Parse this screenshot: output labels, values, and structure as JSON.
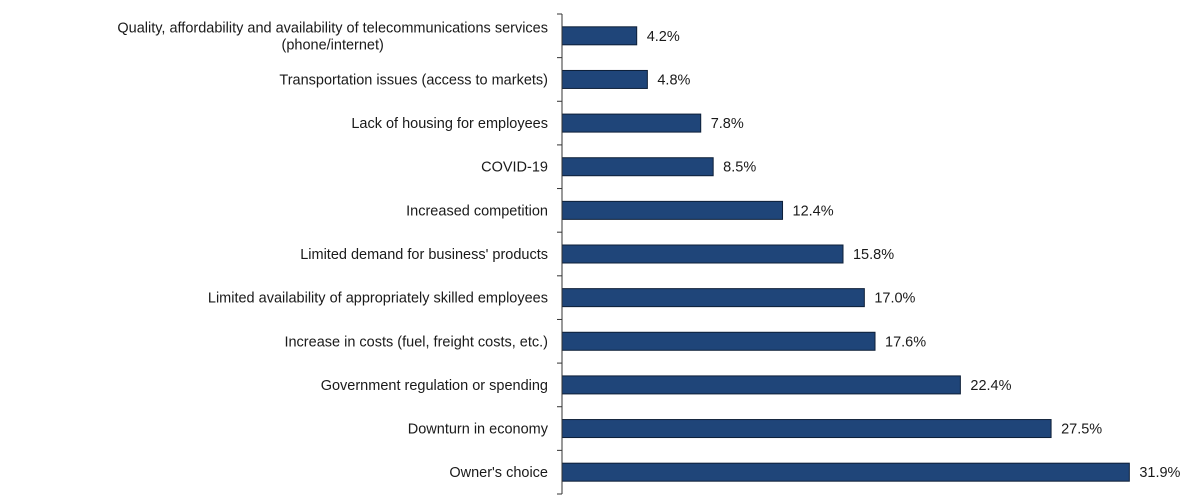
{
  "chart_data": {
    "type": "bar",
    "orientation": "horizontal",
    "categories": [
      [
        "Quality, affordability and availability of telecommunications services",
        "(phone/internet)"
      ],
      [
        "Transportation issues (access to markets)"
      ],
      [
        "Lack of housing for employees"
      ],
      [
        "COVID-19"
      ],
      [
        "Increased competition"
      ],
      [
        "Limited demand for business' products"
      ],
      [
        "Limited availability of appropriately skilled employees"
      ],
      [
        "Increase in costs (fuel, freight costs, etc.)"
      ],
      [
        "Government regulation or spending"
      ],
      [
        "Downturn in economy"
      ],
      [
        "Owner's choice"
      ]
    ],
    "values": [
      4.2,
      4.8,
      7.8,
      8.5,
      12.4,
      15.8,
      17.0,
      17.6,
      22.4,
      27.5,
      31.9
    ],
    "value_labels": [
      "4.2%",
      "4.8%",
      "7.8%",
      "8.5%",
      "12.4%",
      "15.8%",
      "17.0%",
      "17.6%",
      "22.4%",
      "27.5%",
      "31.9%"
    ],
    "xlim": [
      0,
      32.5
    ],
    "bar_color": "#1f4579",
    "grid": false,
    "legend": "none"
  }
}
